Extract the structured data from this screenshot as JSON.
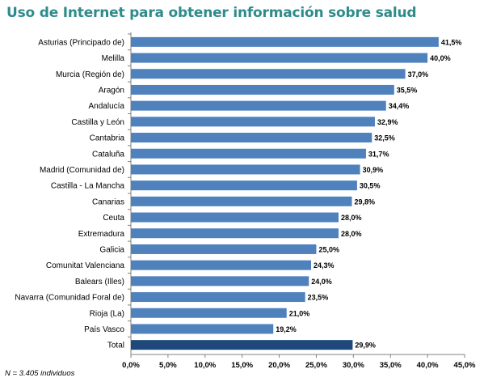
{
  "title": "Uso de Internet para obtener información sobre salud",
  "note": "N = 3.405 individuos",
  "colors": {
    "bar": "#4f81bd",
    "total_bar": "#1f497d",
    "title": "#2e8b8b",
    "axis": "#808080"
  },
  "chart_data": {
    "type": "bar",
    "orientation": "horizontal",
    "title": "Uso de Internet para obtener información sobre salud",
    "categories": [
      "Asturias (Principado de)",
      "Melilla",
      "Murcia (Región de)",
      "Aragón",
      "Andalucía",
      "Castilla y León",
      "Cantabria",
      "Cataluña",
      "Madrid (Comunidad de)",
      "Castilla - La Mancha",
      "Canarias",
      "Ceuta",
      "Extremadura",
      "Galicia",
      "Comunitat Valenciana",
      "Balears (Illes)",
      "Navarra (Comunidad Foral de)",
      "Rioja (La)",
      "País Vasco",
      "Total"
    ],
    "values": [
      41.5,
      40.0,
      37.0,
      35.5,
      34.4,
      32.9,
      32.5,
      31.7,
      30.9,
      30.5,
      29.8,
      28.0,
      28.0,
      25.0,
      24.3,
      24.0,
      23.5,
      21.0,
      19.2,
      29.9
    ],
    "value_labels": [
      "41,5%",
      "40,0%",
      "37,0%",
      "35,5%",
      "34,4%",
      "32,9%",
      "32,5%",
      "31,7%",
      "30,9%",
      "30,5%",
      "29,8%",
      "28,0%",
      "28,0%",
      "25,0%",
      "24,3%",
      "24,0%",
      "23,5%",
      "21,0%",
      "19,2%",
      "29,9%"
    ],
    "highlight": "Total",
    "xlim": [
      0,
      45
    ],
    "xticks": [
      0,
      5,
      10,
      15,
      20,
      25,
      30,
      35,
      40,
      45
    ],
    "xtick_labels": [
      "0,0%",
      "5,0%",
      "10,0%",
      "15,0%",
      "20,0%",
      "25,0%",
      "30,0%",
      "35,0%",
      "40,0%",
      "45,0%"
    ],
    "xlabel": "",
    "ylabel": "",
    "grid": false,
    "legend": false
  }
}
